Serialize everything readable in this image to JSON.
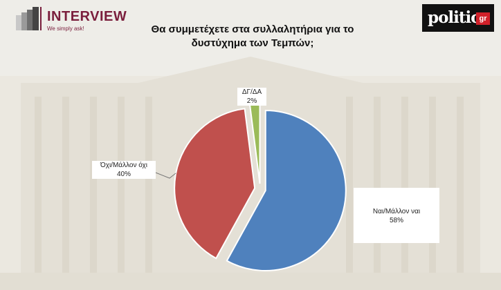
{
  "header": {
    "brand_name": "INTERVIEW",
    "brand_tagline": "We simply ask!",
    "partner_logo_word": "politic",
    "partner_logo_suffix": "gr",
    "colors": {
      "brand": "#7a1e3c",
      "partner_accent": "#d1212a"
    }
  },
  "chart_data": {
    "type": "pie",
    "title": "Θα συμμετέχετε στα συλλαλητήρια για το δυστύχημα των Τεμπών;",
    "slices": [
      {
        "label": "Ναι/Μάλλον ναι",
        "value": 58,
        "value_label": "58%",
        "color": "#4f81bd"
      },
      {
        "label": "Όχι/Μάλλον όχι",
        "value": 40,
        "value_label": "40%",
        "color": "#c0504d"
      },
      {
        "label": "ΔΓ/ΔΑ",
        "value": 2,
        "value_label": "2%",
        "color": "#9bbb59"
      }
    ],
    "start_angle_deg": 0,
    "direction": "clockwise",
    "exploded": true,
    "legend": "none",
    "label_style": "callout boxes with leader lines"
  }
}
